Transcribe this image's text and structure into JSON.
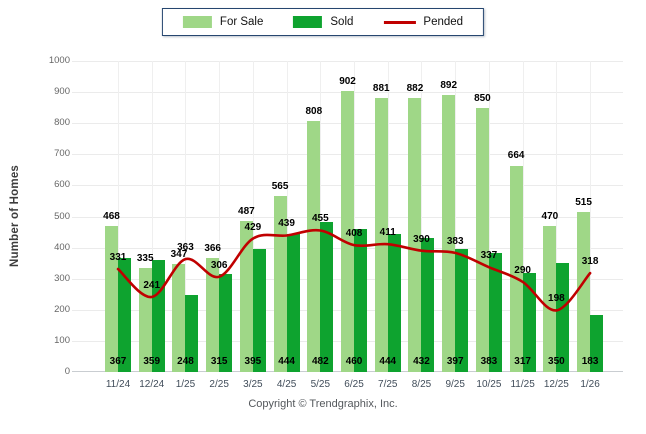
{
  "legend": {
    "items": [
      {
        "label": "For Sale",
        "swatch": "bar",
        "color": "#9FD787"
      },
      {
        "label": "Sold",
        "swatch": "bar",
        "color": "#0EA32F"
      },
      {
        "label": "Pended",
        "swatch": "line",
        "color": "#C00000"
      }
    ]
  },
  "footer": {
    "copyright": "Copyright © Trendgraphix, Inc."
  },
  "chart_data": {
    "type": "bar",
    "categories": [
      "11/24",
      "12/24",
      "1/25",
      "2/25",
      "3/25",
      "4/25",
      "5/25",
      "6/25",
      "7/25",
      "8/25",
      "9/25",
      "10/25",
      "11/25",
      "12/25",
      "1/26"
    ],
    "series": [
      {
        "name": "For Sale",
        "type": "bar",
        "color": "#9FD787",
        "values": [
          468,
          335,
          347,
          366,
          487,
          565,
          808,
          902,
          881,
          882,
          892,
          850,
          664,
          470,
          515
        ]
      },
      {
        "name": "Sold",
        "type": "bar",
        "color": "#0EA32F",
        "values": [
          367,
          359,
          248,
          315,
          395,
          444,
          482,
          460,
          444,
          432,
          397,
          383,
          317,
          350,
          183
        ]
      },
      {
        "name": "Pended",
        "type": "line",
        "color": "#C00000",
        "values": [
          331,
          241,
          363,
          306,
          429,
          439,
          455,
          408,
          411,
          390,
          383,
          337,
          290,
          198,
          318
        ]
      }
    ],
    "title": "",
    "xlabel": "",
    "ylabel": "Number of Homes",
    "ylim": [
      0,
      1000
    ],
    "ytick_step": 100,
    "grid": true,
    "legend_position": "top-center"
  },
  "colors": {
    "grid": "#ebebeb",
    "axis_line": "#c9cdd1",
    "ytick_text": "#666666",
    "xtick_text": "#414d5a",
    "value_label": "#000000",
    "legend_border": "#26466f",
    "background": "#ffffff"
  }
}
